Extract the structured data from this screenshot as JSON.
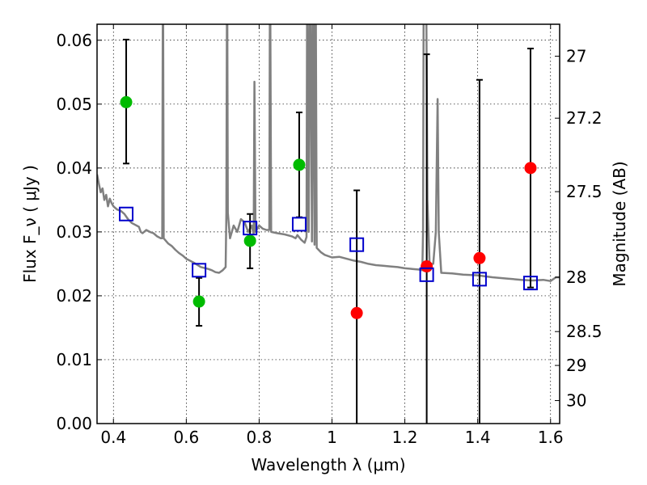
{
  "chart_data": {
    "type": "scatter",
    "xlabel": "Wavelength  λ (μm)",
    "ylabel": "Flux  F_ν  ( μJy )",
    "ylabel_right": "Magnitude (AB)",
    "xlim": [
      0.355,
      1.625
    ],
    "ylim": [
      0.0,
      0.0625
    ],
    "grid": true,
    "x_ticks": [
      0.4,
      0.6,
      0.8,
      1.0,
      1.2,
      1.4,
      1.6
    ],
    "x_tick_labels": [
      "0.4",
      "0.6",
      "0.8",
      "1",
      "1.2",
      "1.4",
      "1.6"
    ],
    "y_ticks": [
      0.0,
      0.01,
      0.02,
      0.03,
      0.04,
      0.05,
      0.06
    ],
    "y_tick_labels": [
      "0.00",
      "0.01",
      "0.02",
      "0.03",
      "0.04",
      "0.05",
      "0.06"
    ],
    "right_ticks": [
      {
        "label": "27",
        "flux": 0.0575
      },
      {
        "label": "27.2",
        "flux": 0.0478
      },
      {
        "label": "27.5",
        "flux": 0.0363
      },
      {
        "label": "28",
        "flux": 0.0229
      },
      {
        "label": "28.5",
        "flux": 0.0144
      },
      {
        "label": "29",
        "flux": 0.0091
      },
      {
        "label": "30",
        "flux": 0.0036
      }
    ],
    "colors": {
      "detection": "#00bb00",
      "nondetection": "#ff0000",
      "model": "#0000cc",
      "spectrum": "#808080",
      "errorbar": "#000000"
    },
    "measured": [
      {
        "x": 0.435,
        "y": 0.0503,
        "err_lo": 0.0407,
        "err_hi": 0.0601,
        "class": "detection"
      },
      {
        "x": 0.635,
        "y": 0.0191,
        "err_lo": 0.0153,
        "err_hi": 0.0228,
        "class": "detection"
      },
      {
        "x": 0.775,
        "y": 0.0286,
        "err_lo": 0.0243,
        "err_hi": 0.0328,
        "class": "detection"
      },
      {
        "x": 0.91,
        "y": 0.0405,
        "err_lo": 0.0323,
        "err_hi": 0.0487,
        "class": "detection"
      },
      {
        "x": 1.068,
        "y": 0.0173,
        "err_lo": 0.0,
        "err_hi": 0.0365,
        "class": "nondetection"
      },
      {
        "x": 1.26,
        "y": 0.0246,
        "err_lo": 0.0,
        "err_hi": 0.0578,
        "class": "nondetection"
      },
      {
        "x": 1.405,
        "y": 0.0259,
        "err_lo": 0.0,
        "err_hi": 0.0538,
        "class": "nondetection"
      },
      {
        "x": 1.545,
        "y": 0.04,
        "err_lo": 0.0213,
        "err_hi": 0.0587,
        "class": "nondetection"
      }
    ],
    "model_photometry": [
      {
        "x": 0.435,
        "y": 0.0328
      },
      {
        "x": 0.635,
        "y": 0.024
      },
      {
        "x": 0.775,
        "y": 0.0306
      },
      {
        "x": 0.91,
        "y": 0.0312
      },
      {
        "x": 1.068,
        "y": 0.028
      },
      {
        "x": 1.26,
        "y": 0.0233
      },
      {
        "x": 1.405,
        "y": 0.0226
      },
      {
        "x": 1.545,
        "y": 0.022
      }
    ],
    "spectrum": [
      [
        0.355,
        0.039
      ],
      [
        0.36,
        0.0375
      ],
      [
        0.365,
        0.0362
      ],
      [
        0.37,
        0.0368
      ],
      [
        0.375,
        0.035
      ],
      [
        0.38,
        0.0358
      ],
      [
        0.385,
        0.034
      ],
      [
        0.39,
        0.0352
      ],
      [
        0.395,
        0.0345
      ],
      [
        0.4,
        0.034
      ],
      [
        0.41,
        0.0335
      ],
      [
        0.42,
        0.0333
      ],
      [
        0.43,
        0.0328
      ],
      [
        0.44,
        0.032
      ],
      [
        0.45,
        0.0314
      ],
      [
        0.46,
        0.0311
      ],
      [
        0.47,
        0.0308
      ],
      [
        0.475,
        0.03
      ],
      [
        0.48,
        0.0298
      ],
      [
        0.49,
        0.0303
      ],
      [
        0.5,
        0.03
      ],
      [
        0.51,
        0.0298
      ],
      [
        0.52,
        0.0293
      ],
      [
        0.53,
        0.029
      ],
      [
        0.534,
        0.029
      ],
      [
        0.536,
        0.075
      ],
      [
        0.538,
        0.029
      ],
      [
        0.55,
        0.0282
      ],
      [
        0.56,
        0.0278
      ],
      [
        0.57,
        0.0272
      ],
      [
        0.58,
        0.0267
      ],
      [
        0.59,
        0.0263
      ],
      [
        0.6,
        0.0258
      ],
      [
        0.62,
        0.0252
      ],
      [
        0.64,
        0.0245
      ],
      [
        0.66,
        0.0242
      ],
      [
        0.67,
        0.024
      ],
      [
        0.68,
        0.0237
      ],
      [
        0.69,
        0.0236
      ],
      [
        0.7,
        0.024
      ],
      [
        0.708,
        0.0245
      ],
      [
        0.71,
        0.033
      ],
      [
        0.712,
        0.075
      ],
      [
        0.714,
        0.033
      ],
      [
        0.72,
        0.029
      ],
      [
        0.73,
        0.031
      ],
      [
        0.74,
        0.03
      ],
      [
        0.75,
        0.032
      ],
      [
        0.76,
        0.0315
      ],
      [
        0.77,
        0.03
      ],
      [
        0.78,
        0.031
      ],
      [
        0.785,
        0.0296
      ],
      [
        0.787,
        0.0535
      ],
      [
        0.79,
        0.03
      ],
      [
        0.8,
        0.031
      ],
      [
        0.81,
        0.0305
      ],
      [
        0.82,
        0.0303
      ],
      [
        0.828,
        0.0303
      ],
      [
        0.83,
        0.075
      ],
      [
        0.833,
        0.03
      ],
      [
        0.85,
        0.0298
      ],
      [
        0.87,
        0.0296
      ],
      [
        0.89,
        0.0293
      ],
      [
        0.9,
        0.029
      ],
      [
        0.905,
        0.0295
      ],
      [
        0.915,
        0.0288
      ],
      [
        0.925,
        0.0283
      ],
      [
        0.93,
        0.0292
      ],
      [
        0.932,
        0.075
      ],
      [
        0.936,
        0.03
      ],
      [
        0.94,
        0.075
      ],
      [
        0.945,
        0.0285
      ],
      [
        0.948,
        0.075
      ],
      [
        0.952,
        0.028
      ],
      [
        0.955,
        0.075
      ],
      [
        0.958,
        0.0275
      ],
      [
        0.97,
        0.0268
      ],
      [
        0.98,
        0.0264
      ],
      [
        1.0,
        0.026
      ],
      [
        1.02,
        0.0261
      ],
      [
        1.04,
        0.0258
      ],
      [
        1.06,
        0.0255
      ],
      [
        1.08,
        0.0253
      ],
      [
        1.1,
        0.025
      ],
      [
        1.12,
        0.0248
      ],
      [
        1.14,
        0.0247
      ],
      [
        1.16,
        0.0246
      ],
      [
        1.18,
        0.0245
      ],
      [
        1.2,
        0.0243
      ],
      [
        1.22,
        0.0242
      ],
      [
        1.24,
        0.0241
      ],
      [
        1.248,
        0.024
      ],
      [
        1.25,
        0.03
      ],
      [
        1.252,
        0.075
      ],
      [
        1.258,
        0.075
      ],
      [
        1.262,
        0.035
      ],
      [
        1.268,
        0.025
      ],
      [
        1.278,
        0.025
      ],
      [
        1.285,
        0.03
      ],
      [
        1.29,
        0.0508
      ],
      [
        1.293,
        0.03
      ],
      [
        1.3,
        0.0236
      ],
      [
        1.33,
        0.0235
      ],
      [
        1.36,
        0.0233
      ],
      [
        1.4,
        0.0232
      ],
      [
        1.44,
        0.0229
      ],
      [
        1.48,
        0.0227
      ],
      [
        1.52,
        0.0225
      ],
      [
        1.55,
        0.0224
      ],
      [
        1.58,
        0.0225
      ],
      [
        1.6,
        0.0223
      ],
      [
        1.615,
        0.0229
      ],
      [
        1.625,
        0.0229
      ]
    ]
  }
}
